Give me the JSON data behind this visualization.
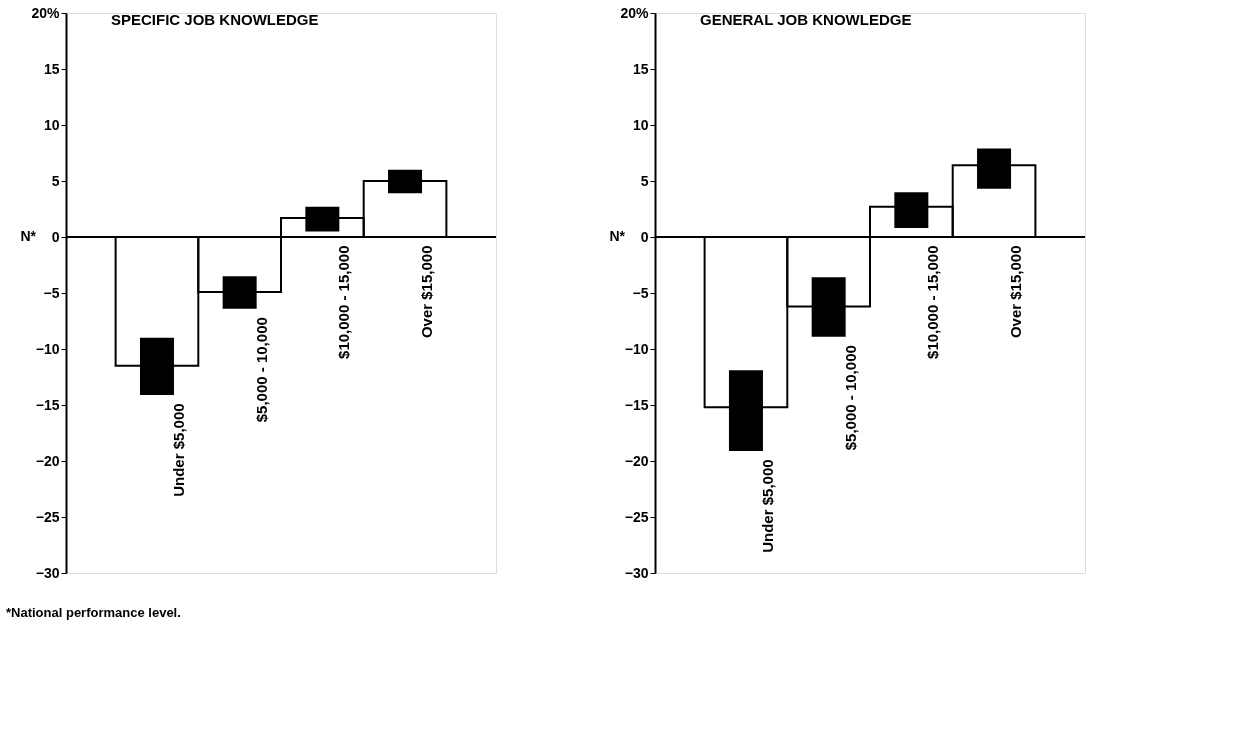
{
  "chart_data": [
    {
      "type": "bar",
      "title": "SPECIFIC JOB KNOWLEDGE",
      "categories": [
        "Under $5,000",
        "$5,000 - 10,000",
        "$10,000 - 15,000",
        "Over $15,000"
      ],
      "series": [
        {
          "values": [
            -11.5,
            -4.9,
            1.7,
            5.0
          ],
          "errors": [
            [
              -14.1,
              -9.0
            ],
            [
              -6.4,
              -3.5
            ],
            [
              0.5,
              2.7
            ],
            [
              3.9,
              6.0
            ]
          ]
        }
      ],
      "ylim": [
        -30,
        20
      ],
      "yticks": [
        -30,
        -25,
        -20,
        -15,
        -10,
        -5,
        0,
        5,
        10,
        15,
        {
          "value": 20,
          "label": "20%"
        }
      ],
      "ref_lines": [
        {
          "axis": "y",
          "value": 0,
          "label": "N*"
        }
      ],
      "grid": false,
      "annotations": [
        "*National performance level."
      ]
    },
    {
      "type": "bar",
      "title": "GENERAL JOB KNOWLEDGE",
      "categories": [
        "Under $5,000",
        "$5,000 - 10,000",
        "$10,000 - 15,000",
        "Over $15,000"
      ],
      "series": [
        {
          "values": [
            -15.2,
            -6.2,
            2.7,
            6.4
          ],
          "errors": [
            [
              -19.1,
              -11.9
            ],
            [
              -8.9,
              -3.6
            ],
            [
              0.8,
              4.0
            ],
            [
              4.3,
              7.9
            ]
          ]
        }
      ],
      "ylim": [
        -30,
        20
      ],
      "yticks": [
        -30,
        -25,
        -20,
        -15,
        -10,
        -5,
        0,
        5,
        10,
        15,
        {
          "value": 20,
          "label": "20%"
        }
      ],
      "ref_lines": [
        {
          "axis": "y",
          "value": 0,
          "label": "N*"
        }
      ],
      "grid": false
    }
  ]
}
